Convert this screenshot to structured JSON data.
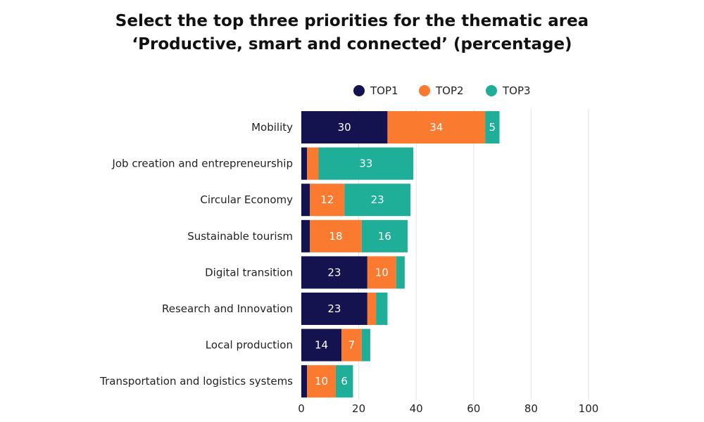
{
  "chart_data": {
    "type": "bar",
    "orientation": "horizontal",
    "stacked": true,
    "title_lines": [
      "Select the top three priorities for the thematic area",
      "‘Productive, smart and connected’ (percentage)"
    ],
    "xlabel": "",
    "ylabel": "",
    "xlim": [
      0,
      100
    ],
    "xticks": [
      "0",
      "20",
      "40",
      "60",
      "80",
      "100"
    ],
    "grid": "vertical",
    "legend_position": "top",
    "categories": [
      "Mobility",
      "Job creation and entrepreneurship",
      "Circular Economy",
      "Sustainable tourism",
      "Digital transition",
      "Research and Innovation",
      "Local production",
      "Transportation and logistics systems"
    ],
    "series": [
      {
        "name": "TOP1",
        "color": "#14124f",
        "values": [
          30,
          2,
          3,
          3,
          23,
          23,
          14,
          2
        ]
      },
      {
        "name": "TOP2",
        "color": "#fa7a30",
        "values": [
          34,
          4,
          12,
          18,
          10,
          3,
          7,
          10
        ]
      },
      {
        "name": "TOP3",
        "color": "#1fae98",
        "values": [
          5,
          33,
          23,
          16,
          3,
          4,
          3,
          6
        ]
      }
    ],
    "label_min_value": 5
  }
}
